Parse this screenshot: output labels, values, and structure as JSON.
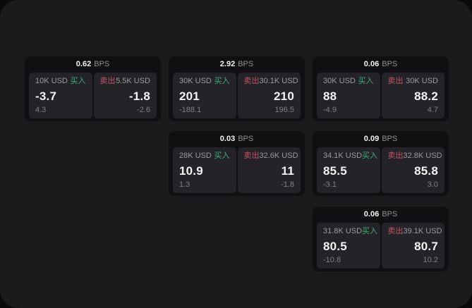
{
  "labels": {
    "bps_unit": "BPS",
    "buy": "买入",
    "sell": "卖出"
  },
  "colors": {
    "buy_accent": "#3fae7d",
    "sell_accent": "#c25467",
    "panel_bg": "#1b1b1d",
    "card_bg": "#101012",
    "tile_bg": "#242428",
    "outer_bg": "#0a0a0a"
  },
  "cards": [
    {
      "bps": "0.62",
      "row": 0,
      "col": 0,
      "buy": {
        "amount": "10K USD",
        "price": "-3.7",
        "change": "4.3"
      },
      "sell": {
        "amount": "5.5K USD",
        "price": "-1.8",
        "change": "-2.6"
      }
    },
    {
      "bps": "2.92",
      "row": 0,
      "col": 1,
      "buy": {
        "amount": "30K USD",
        "price": "201",
        "change": "-188.1"
      },
      "sell": {
        "amount": "30.1K USD",
        "price": "210",
        "change": "196.5"
      }
    },
    {
      "bps": "0.06",
      "row": 0,
      "col": 2,
      "buy": {
        "amount": "30K USD",
        "price": "88",
        "change": "-4.9"
      },
      "sell": {
        "amount": "30K USD",
        "price": "88.2",
        "change": "4.7"
      }
    },
    {
      "bps": "0.03",
      "row": 1,
      "col": 1,
      "buy": {
        "amount": "28K USD",
        "price": "10.9",
        "change": "1.3"
      },
      "sell": {
        "amount": "32.6K USD",
        "price": "11",
        "change": "-1.8"
      }
    },
    {
      "bps": "0.09",
      "row": 1,
      "col": 2,
      "buy": {
        "amount": "34.1K USD",
        "price": "85.5",
        "change": "-3.1"
      },
      "sell": {
        "amount": "32.8K USD",
        "price": "85.8",
        "change": "3.0"
      }
    },
    {
      "bps": "0.06",
      "row": 2,
      "col": 2,
      "buy": {
        "amount": "31.8K USD",
        "price": "80.5",
        "change": "-10.8"
      },
      "sell": {
        "amount": "39.1K USD",
        "price": "80.7",
        "change": "10.2"
      }
    }
  ]
}
